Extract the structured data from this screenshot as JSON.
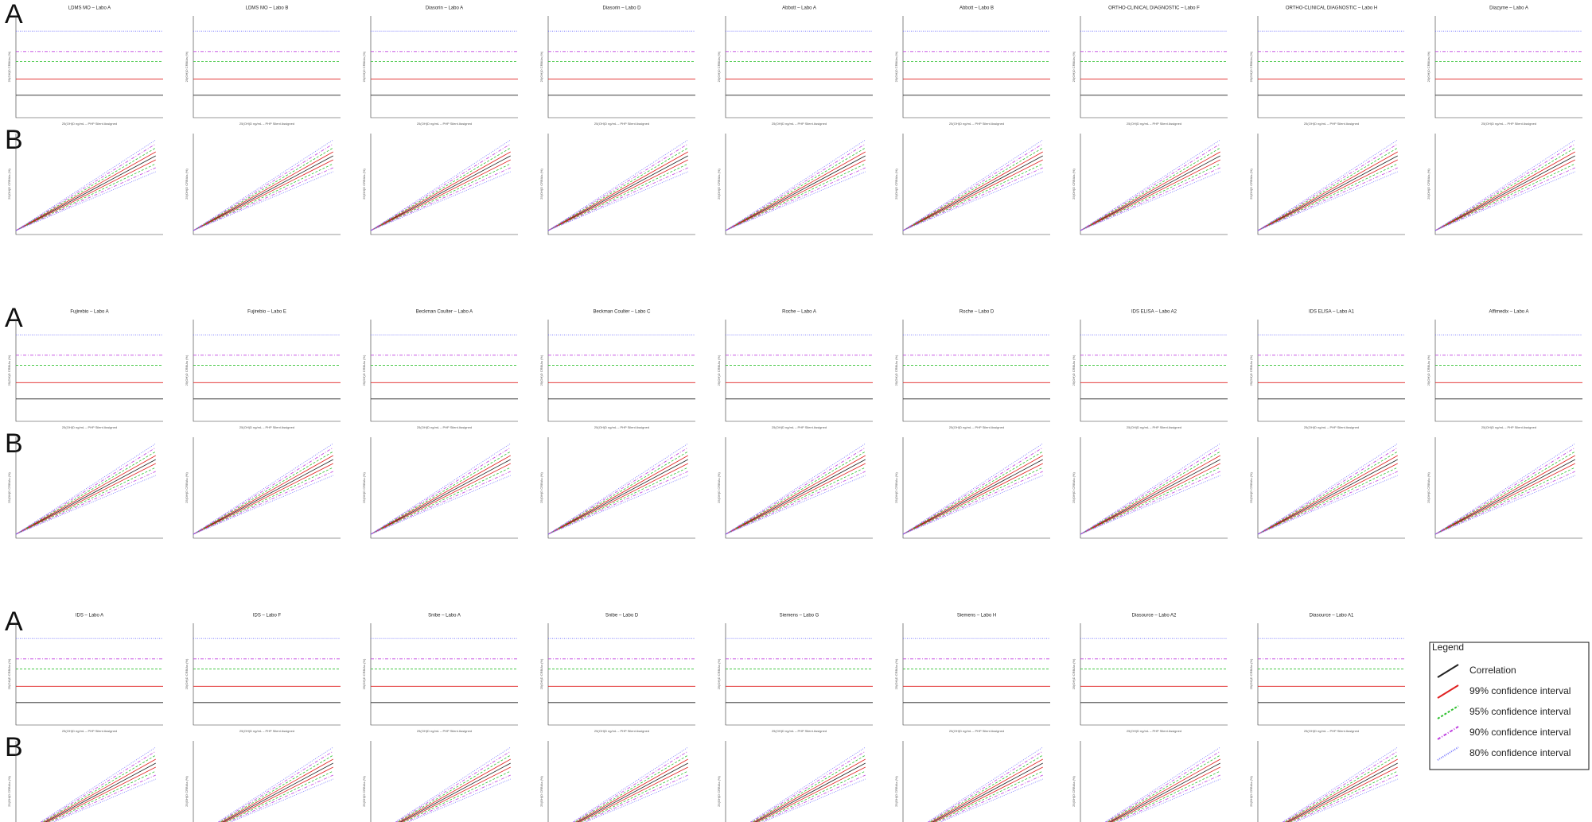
{
  "panel_letters": [
    "A",
    "B"
  ],
  "x_axis_label": "25(OH)D ng/mL – PHP Silent Assigned",
  "y_axis_label": "25(OH)D CRBIAs (%)",
  "groups": [
    {
      "titles": [
        "LDMS MO – Labo A",
        "LDMS MO – Labo B",
        "Diasorin – Labo A",
        "Diasorin – Labo D",
        "Abbott – Labo A",
        "Abbott – Labo B",
        "ORTHO-CLINICAL DIAGNOSTIC – Labo F",
        "ORTHO-CLINICAL DIAGNOSTIC – Labo H",
        "Diazyme – Labo A"
      ]
    },
    {
      "titles": [
        "Fujirebio – Labo A",
        "Fujirebio – Labo E",
        "Beckman Coulter – Labo A",
        "Beckman Coulter – Labo C",
        "Roche – Labo A",
        "Roche – Labo D",
        "IDS ELISA – Labo A2",
        "IDS ELISA – Labo A1",
        "Affimedix – Labo A"
      ]
    },
    {
      "titles": [
        "IDS – Labo A",
        "IDS – Labo F",
        "Snibe – Labo A",
        "Snibe – Labo D",
        "Siemens – Labo G",
        "Siemens – Labo H",
        "Diasource – Labo A2",
        "Diasource – Labo A1"
      ]
    }
  ],
  "legend": {
    "title": "Legend",
    "entries": [
      "Correlation",
      "99% confidence interval",
      "95% confidence interval",
      "90% confidence interval",
      "80% confidence interval"
    ]
  }
}
